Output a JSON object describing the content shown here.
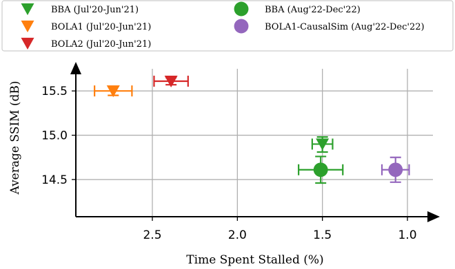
{
  "chart_data": {
    "type": "scatter",
    "xlabel": "Time Spent Stalled (%)",
    "ylabel": "Average SSIM (dB)",
    "x_reversed": true,
    "xlim": [
      2.95,
      0.85
    ],
    "ylim": [
      14.08,
      15.75
    ],
    "xticks": [
      2.5,
      2.0,
      1.5,
      1.0
    ],
    "xtick_labels": [
      "2.5",
      "2.0",
      "1.5",
      "1.0"
    ],
    "yticks": [
      14.5,
      15.0,
      15.5
    ],
    "ytick_labels": [
      "14.5",
      "15.0",
      "15.5"
    ],
    "grid": true,
    "legend_position": "top",
    "series": [
      {
        "name": "BBA (Jul'20-Jun'21)",
        "marker": "triangle-down",
        "color": "#2ca02c",
        "x": 1.5,
        "y": 14.9,
        "xerr": [
          0.06,
          0.06
        ],
        "yerr": [
          0.09,
          0.08
        ]
      },
      {
        "name": "BOLA1 (Jul'20-Jun'21)",
        "marker": "triangle-down",
        "color": "#ff7f0e",
        "x": 2.73,
        "y": 15.5,
        "xerr": [
          0.11,
          0.11
        ],
        "yerr": [
          0.05,
          0.05
        ]
      },
      {
        "name": "BOLA2 (Jul'20-Jun'21)",
        "marker": "triangle-down",
        "color": "#d62728",
        "x": 2.39,
        "y": 15.61,
        "xerr": [
          0.1,
          0.1
        ],
        "yerr": [
          0.04,
          0.04
        ]
      },
      {
        "name": "BBA (Aug'22-Dec'22)",
        "marker": "circle",
        "color": "#2ca02c",
        "x": 1.51,
        "y": 14.61,
        "xerr": [
          0.13,
          0.13
        ],
        "yerr": [
          0.15,
          0.15
        ]
      },
      {
        "name": "BOLA1-CausalSim (Aug'22-Dec'22)",
        "marker": "circle",
        "color": "#9467bd",
        "x": 1.07,
        "y": 14.61,
        "xerr": [
          0.08,
          0.08
        ],
        "yerr": [
          0.14,
          0.14
        ]
      }
    ]
  }
}
